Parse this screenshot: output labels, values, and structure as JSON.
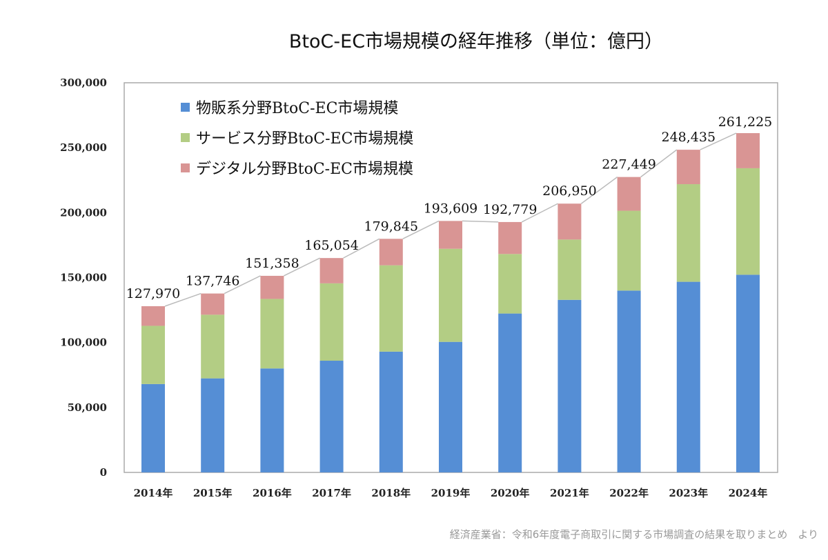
{
  "title": "BtoC-EC市場規模の経年推移（単位：億円）",
  "source": "経済産業省：令和6年度電子商取引に関する市場調査の結果を取りまとめ　より",
  "chart_data": {
    "type": "bar",
    "stacked": true,
    "categories": [
      "2014年",
      "2015年",
      "2016年",
      "2017年",
      "2018年",
      "2019年",
      "2020年",
      "2021年",
      "2022年",
      "2023年",
      "2024年"
    ],
    "series": [
      {
        "name": "物販系分野BtoC-EC市場規模",
        "color": "#558ed5",
        "values": [
          68043,
          72398,
          80043,
          86008,
          92992,
          100515,
          122333,
          132865,
          139997,
          146760,
          152194
        ]
      },
      {
        "name": "サービス分野BtoC-EC市場規模",
        "color": "#b3cd84",
        "values": [
          44816,
          49014,
          53532,
          59568,
          66471,
          71672,
          45832,
          46424,
          61477,
          75169,
          81999
        ]
      },
      {
        "name": "デジタル分野BtoC-EC市場規模",
        "color": "#d99594",
        "values": [
          15111,
          16334,
          17782,
          19478,
          20382,
          21422,
          24614,
          27661,
          25974,
          26506,
          27032
        ]
      }
    ],
    "totals": [
      "127,970",
      "137,746",
      "151,358",
      "165,054",
      "179,845",
      "193,609",
      "192,779",
      "206,950",
      "227,449",
      "248,435",
      "261,225"
    ],
    "yticks": [
      "0",
      "50,000",
      "100,000",
      "150,000",
      "200,000",
      "250,000",
      "300,000"
    ],
    "ylim": [
      0,
      300000
    ],
    "legend": "top-left",
    "grid": false
  }
}
